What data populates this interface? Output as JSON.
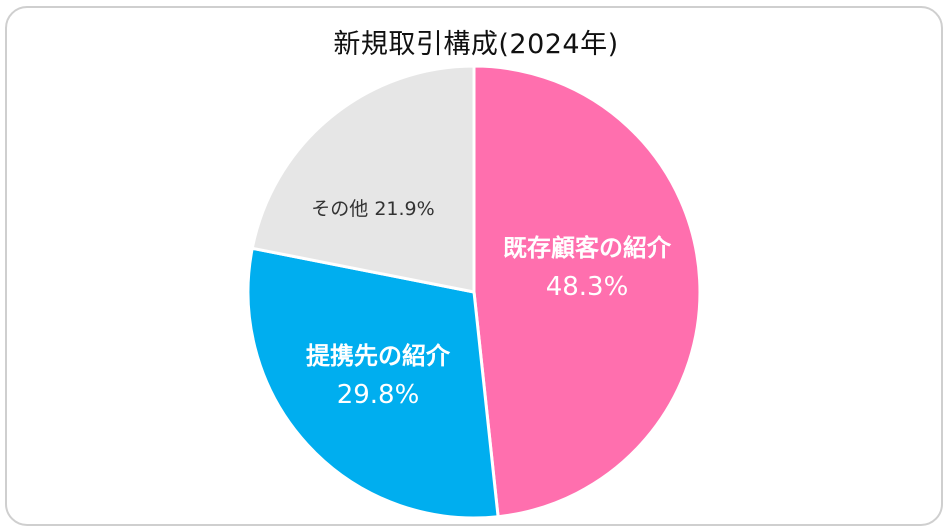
{
  "chart_data": {
    "type": "pie",
    "title": "新規取引構成(2024年)",
    "series": [
      {
        "name": "既存顧客の紹介",
        "value": 48.3,
        "label": "48.3%",
        "color": "#ff6fae",
        "text_color": "#ffffff"
      },
      {
        "name": "提携先の紹介",
        "value": 29.8,
        "label": "29.8%",
        "color": "#00aeef",
        "text_color": "#ffffff"
      },
      {
        "name": "その他",
        "value": 21.9,
        "label": "21.9%",
        "color": "#e6e6e6",
        "text_color": "#333333"
      }
    ],
    "start_angle": "12 o'clock",
    "direction": "clockwise",
    "legend": "none"
  }
}
